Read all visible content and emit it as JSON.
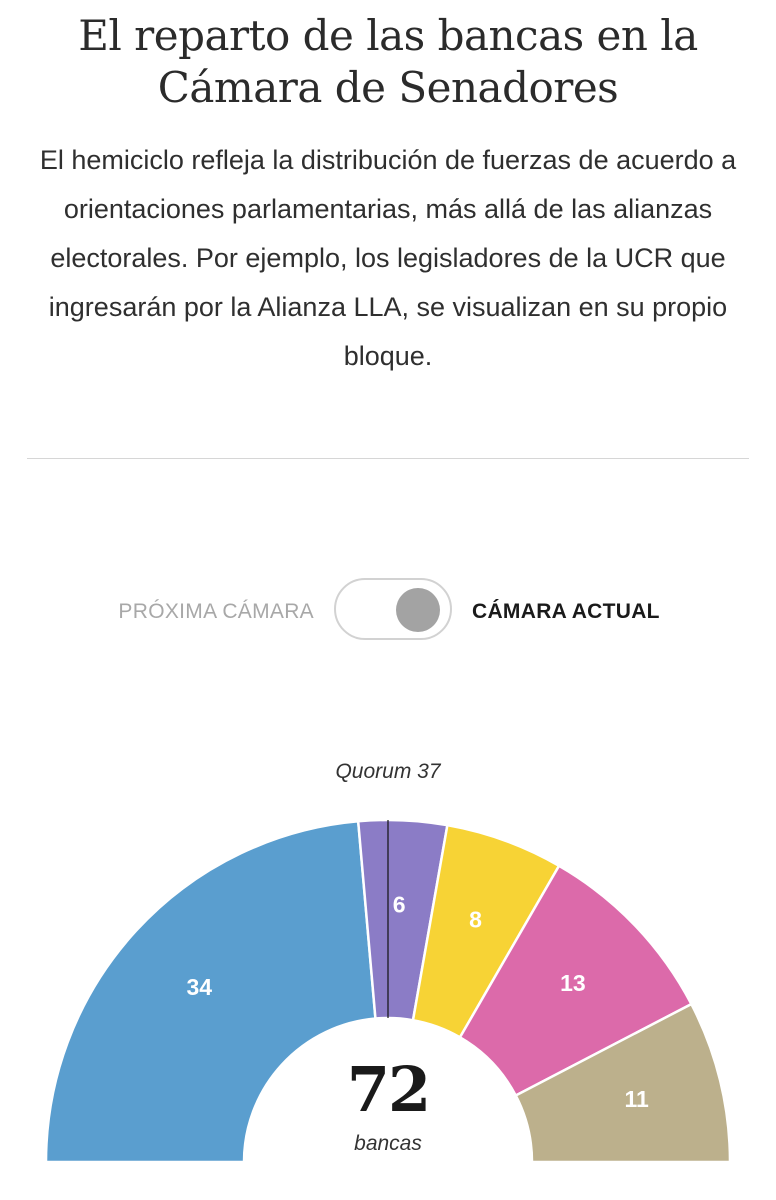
{
  "header": {
    "title_line1": "El reparto de las bancas en la",
    "title_line2": "Cámara de Senadores",
    "description": "El hemiciclo refleja la distribución de fuerzas de acuerdo a orientaciones parlamentarias, más allá de las alianzas electorales. Por ejemplo, los legisladores de la UCR que ingresarán por la Alianza LLA, se visualizan en su propio bloque."
  },
  "toggle": {
    "left_label": "PRÓXIMA CÁMARA",
    "right_label": "CÁMARA ACTUAL",
    "selected": "CÁMARA ACTUAL"
  },
  "chart_data": {
    "type": "hemicycle",
    "total_seats": 72,
    "total_value": "72",
    "total_label": "bancas",
    "quorum": 37,
    "quorum_label": "Quorum 37",
    "segments": [
      {
        "value": 34,
        "label": "34",
        "color": "#5a9ecf"
      },
      {
        "value": 6,
        "label": "6",
        "color": "#8b7cc6"
      },
      {
        "value": 8,
        "label": "8",
        "color": "#f7d335"
      },
      {
        "value": 13,
        "label": "13",
        "color": "#dc6aaa"
      },
      {
        "value": 11,
        "label": "11",
        "color": "#bcb08c"
      }
    ]
  }
}
